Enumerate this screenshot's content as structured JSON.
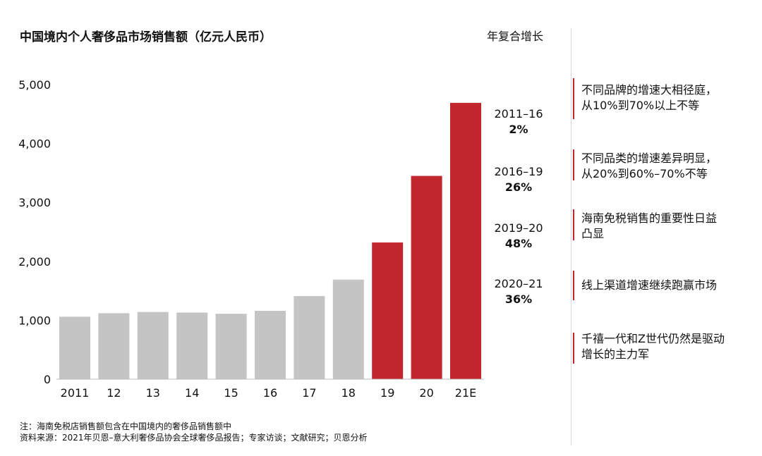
{
  "title": "中国境内个人奢侈品市场销售额（亿元人民币）",
  "cagr_header": "年复合增长",
  "chart_data": {
    "type": "bar",
    "title": "中国境内个人奢侈品市场销售额（亿元人民币）",
    "xlabel": "",
    "ylabel": "",
    "ylim": [
      0,
      5000
    ],
    "yticks": [
      0,
      1000,
      2000,
      3000,
      4000,
      5000
    ],
    "ytick_labels": [
      "0",
      "1,000",
      "2,000",
      "3,000",
      "4,000",
      "5,000"
    ],
    "categories": [
      "2011",
      "12",
      "13",
      "14",
      "15",
      "16",
      "17",
      "18",
      "19",
      "20",
      "21E"
    ],
    "values": [
      1060,
      1120,
      1140,
      1130,
      1110,
      1160,
      1410,
      1690,
      2320,
      3450,
      4690
    ],
    "bar_colors": [
      "#c4c4c4",
      "#c4c4c4",
      "#c4c4c4",
      "#c4c4c4",
      "#c4c4c4",
      "#c4c4c4",
      "#c4c4c4",
      "#c4c4c4",
      "#c1272d",
      "#c1272d",
      "#c1272d"
    ],
    "grid": false
  },
  "cagr": [
    {
      "period": "2011–16",
      "value": "2%"
    },
    {
      "period": "2016–19",
      "value": "26%"
    },
    {
      "period": "2019–20",
      "value": "48%"
    },
    {
      "period": "2020–21",
      "value": "36%"
    }
  ],
  "notes": [
    "不同品牌的增速大相径庭，\n从10%到70%以上不等",
    "不同品类的增速差异明显，\n从20%到60%–70%不等",
    "海南免税销售的重要性日益\n凸显",
    "线上渠道增速继续跑赢市场",
    "千禧一代和Z世代仍然是驱动\n增长的主力军"
  ],
  "accent_color": "#c1272d",
  "gray_color": "#c4c4c4",
  "footnote": {
    "line1": "注：海南免税店销售额包含在中国境内的奢侈品销售额中",
    "line2": "资料来源：2021年贝恩–意大利奢侈品协会全球奢侈品报告；专家访谈；文献研究；贝恩分析"
  }
}
